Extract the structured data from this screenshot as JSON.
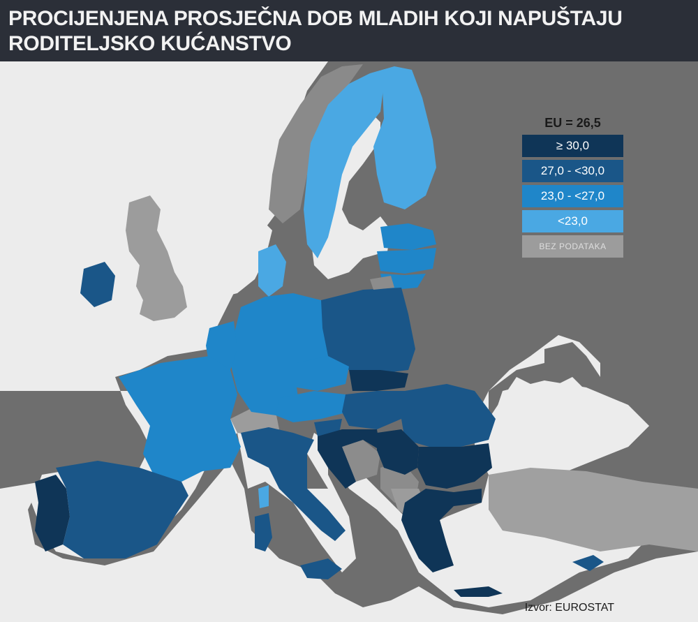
{
  "header": {
    "title_line1": "PROCIJENJENA PROSJEČNA DOB MLADIH KOJI NAPUŠTAJU",
    "title_line2": "RODITELJSKO KUĆANSTVO"
  },
  "legend": {
    "title": "EU = 26,5",
    "items": [
      {
        "label": "≥ 30,0",
        "color": "#0f3557"
      },
      {
        "label": "27,0 - <30,0",
        "color": "#1a5688"
      },
      {
        "label": "23,0 - <27,0",
        "color": "#1f86c9"
      },
      {
        "label": "<23,0",
        "color": "#4aa8e3"
      },
      {
        "label": "BEZ PODATAKA",
        "color": "#9c9c9c"
      }
    ]
  },
  "source": "Izvor: EUROSTAT",
  "colors": {
    "sea": "#ececec",
    "land_outside": "#6e6e6e",
    "header_bg": "#2b2f38"
  }
}
